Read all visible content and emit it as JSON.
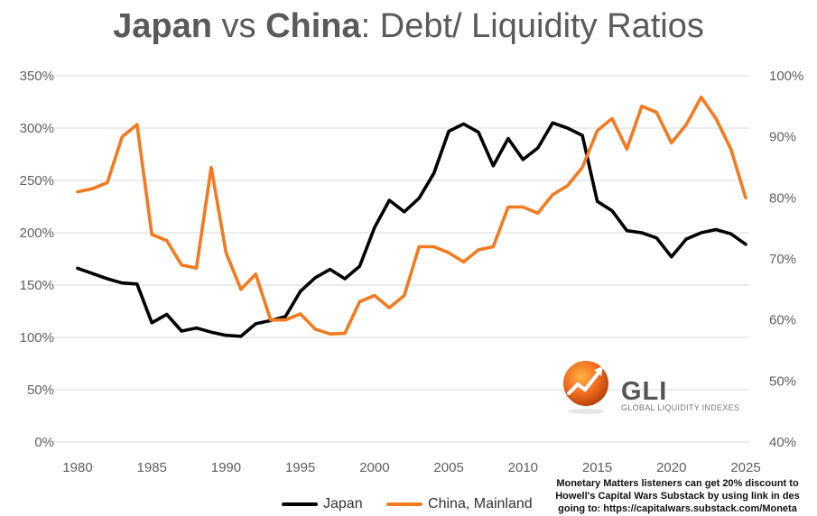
{
  "title": {
    "part1": "Japan",
    "part2": " vs ",
    "part3": "China",
    "part4": ": Debt/ Liquidity Ratios"
  },
  "chart_data": {
    "type": "line",
    "title": "Japan vs China: Debt/ Liquidity Ratios",
    "x": [
      1980,
      1981,
      1982,
      1983,
      1984,
      1985,
      1986,
      1987,
      1988,
      1989,
      1990,
      1991,
      1992,
      1993,
      1994,
      1995,
      1996,
      1997,
      1998,
      1999,
      2000,
      2001,
      2002,
      2003,
      2004,
      2005,
      2006,
      2007,
      2008,
      2009,
      2010,
      2011,
      2012,
      2013,
      2014,
      2015,
      2016,
      2017,
      2018,
      2019,
      2020,
      2021,
      2022,
      2023,
      2024,
      2025
    ],
    "x_ticks": [
      "1980",
      "1985",
      "1990",
      "1995",
      "2000",
      "2005",
      "2010",
      "2015",
      "2020",
      "2025"
    ],
    "left_axis": {
      "range": [
        0,
        350
      ],
      "unit": "%",
      "ticks": [
        "0%",
        "50%",
        "100%",
        "150%",
        "200%",
        "250%",
        "300%",
        "350%"
      ]
    },
    "right_axis": {
      "range": [
        40,
        100
      ],
      "unit": "%",
      "ticks": [
        "40%",
        "50%",
        "60%",
        "70%",
        "80%",
        "90%",
        "100%"
      ]
    },
    "series": [
      {
        "name": "Japan",
        "axis": "left",
        "color": "#000000",
        "values": [
          166,
          161,
          156,
          152,
          151,
          114,
          122,
          106,
          109,
          105,
          102,
          101,
          113,
          116,
          120,
          144,
          157,
          165,
          156,
          168,
          205,
          231,
          220,
          233,
          257,
          297,
          304,
          296,
          264,
          290,
          270,
          281,
          305,
          300,
          293,
          230,
          221,
          202,
          200,
          195,
          177,
          194,
          200,
          203,
          199,
          189
        ]
      },
      {
        "name": "China, Mainland",
        "axis": "right",
        "color": "#f47a20",
        "values": [
          81,
          81.5,
          82.5,
          90,
          92,
          74,
          73,
          69,
          68.5,
          85,
          71,
          65,
          67.5,
          60,
          60,
          61,
          58.5,
          57.7,
          57.8,
          63,
          64,
          62,
          64,
          72,
          72,
          71,
          69.5,
          71.5,
          72,
          78.5,
          78.5,
          77.5,
          80.5,
          82,
          85,
          91,
          93,
          88,
          95,
          94,
          89,
          92,
          96.5,
          93,
          88,
          80
        ]
      }
    ],
    "legend": [
      "Japan",
      "China, Mainland"
    ],
    "legend_position": "bottom"
  },
  "logo": {
    "name": "GLI",
    "subtitle": "GLOBAL LIQUIDITY INDEXES"
  },
  "note": {
    "line1": "Monetary Matters listeners can get 20% discount to",
    "line2": "Howell's Capital Wars Substack by using link in des",
    "line3": "going to: https://capitalwars.substack.com/Moneta"
  },
  "colors": {
    "japan": "#000000",
    "china": "#f47a20",
    "grid": "#d9d9d9",
    "text": "#5f5f5f"
  }
}
